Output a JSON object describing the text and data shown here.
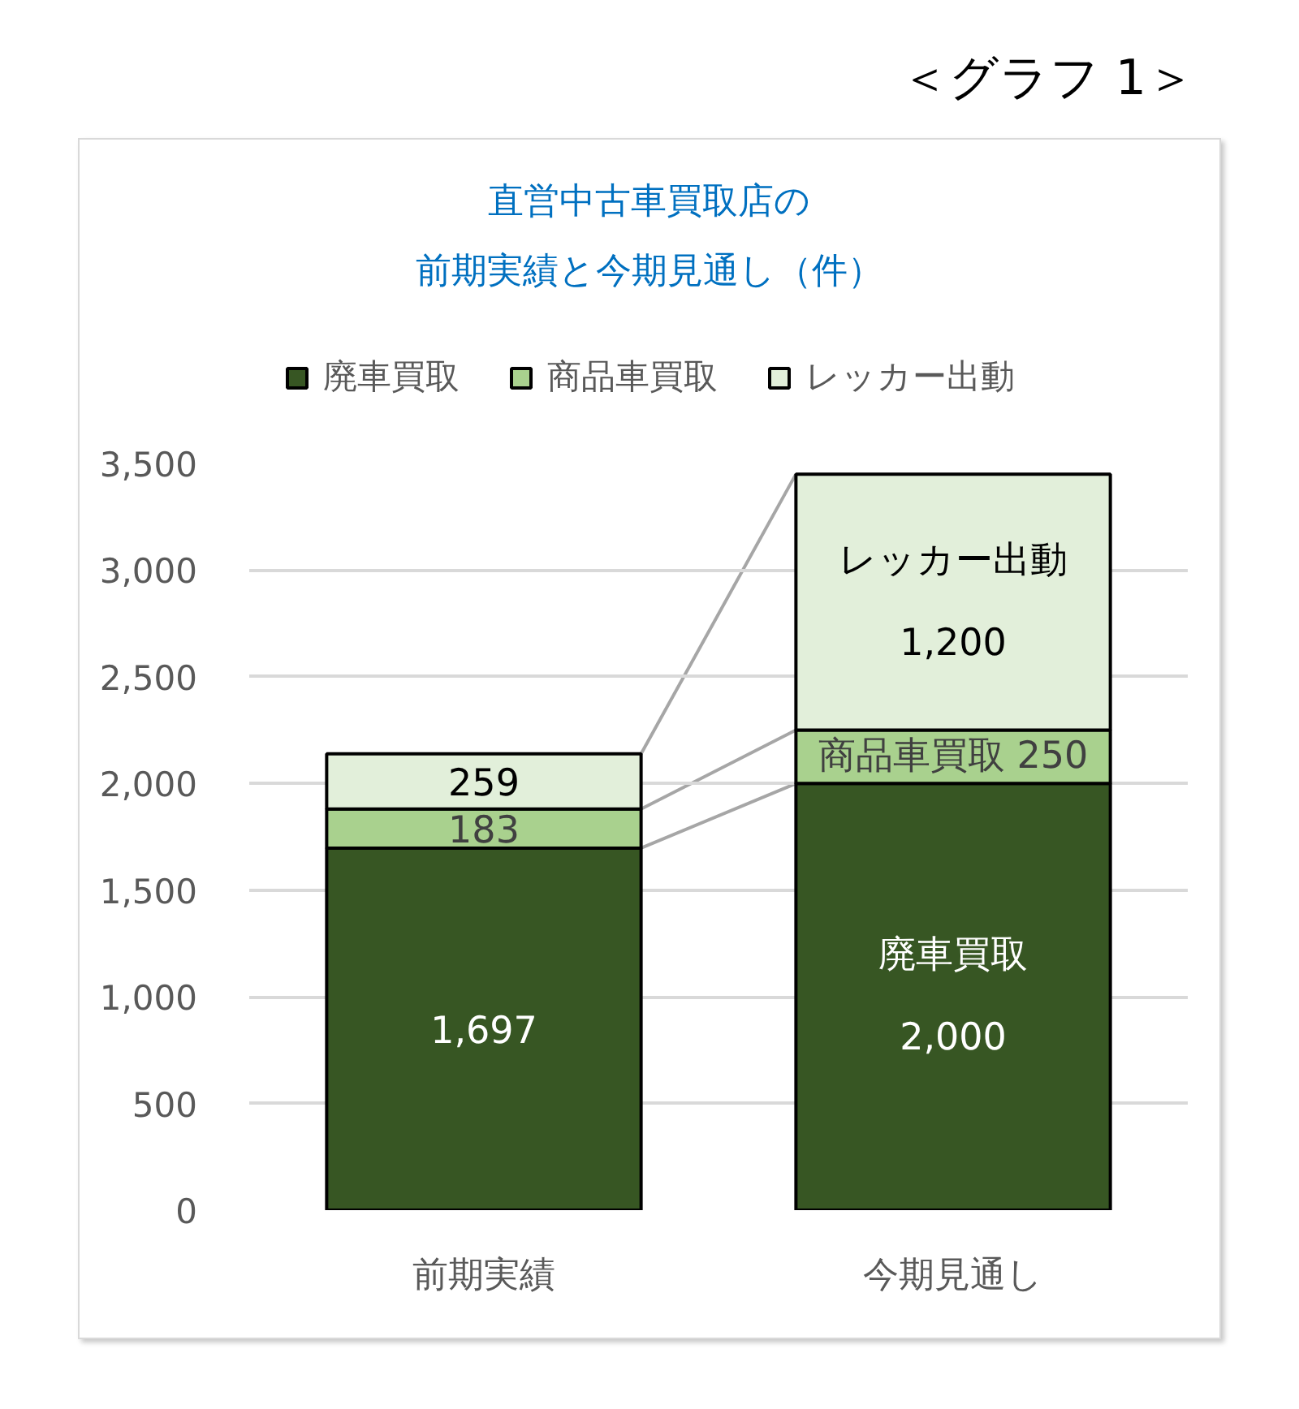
{
  "chart_data": {
    "type": "bar",
    "title": "直営中古車買取店の前期実績と今期見通し（件）",
    "annotations": [
      "＜グラフ 1＞"
    ],
    "categories": [
      "前期実績",
      "今期見通し"
    ],
    "stacked": true,
    "series": [
      {
        "name": "廃車買取",
        "color": "#375623",
        "values": [
          1697,
          2000
        ],
        "value_labels": [
          "1,697",
          "廃車買取\n2,000"
        ]
      },
      {
        "name": "商品車買取",
        "color": "#a9d18e",
        "values": [
          183,
          250
        ],
        "value_labels": [
          "183",
          "商品車買取 250"
        ]
      },
      {
        "name": "レッカー出動",
        "color": "#e2efda",
        "values": [
          259,
          1200
        ],
        "value_labels": [
          "259",
          "レッカー出動\n1,200"
        ]
      }
    ],
    "ylim": [
      0,
      3500
    ],
    "yticks": [
      0,
      500,
      {
        "value": 1000,
        "label": "1,000"
      },
      {
        "value": 1500,
        "label": "1,500"
      },
      {
        "value": 2000,
        "label": "2,000"
      },
      {
        "value": 2500,
        "label": "2,500"
      },
      {
        "value": 3000,
        "label": "3,000"
      },
      {
        "value": 3500,
        "label": "3,500"
      }
    ],
    "grid": "y",
    "legend": "top"
  }
}
